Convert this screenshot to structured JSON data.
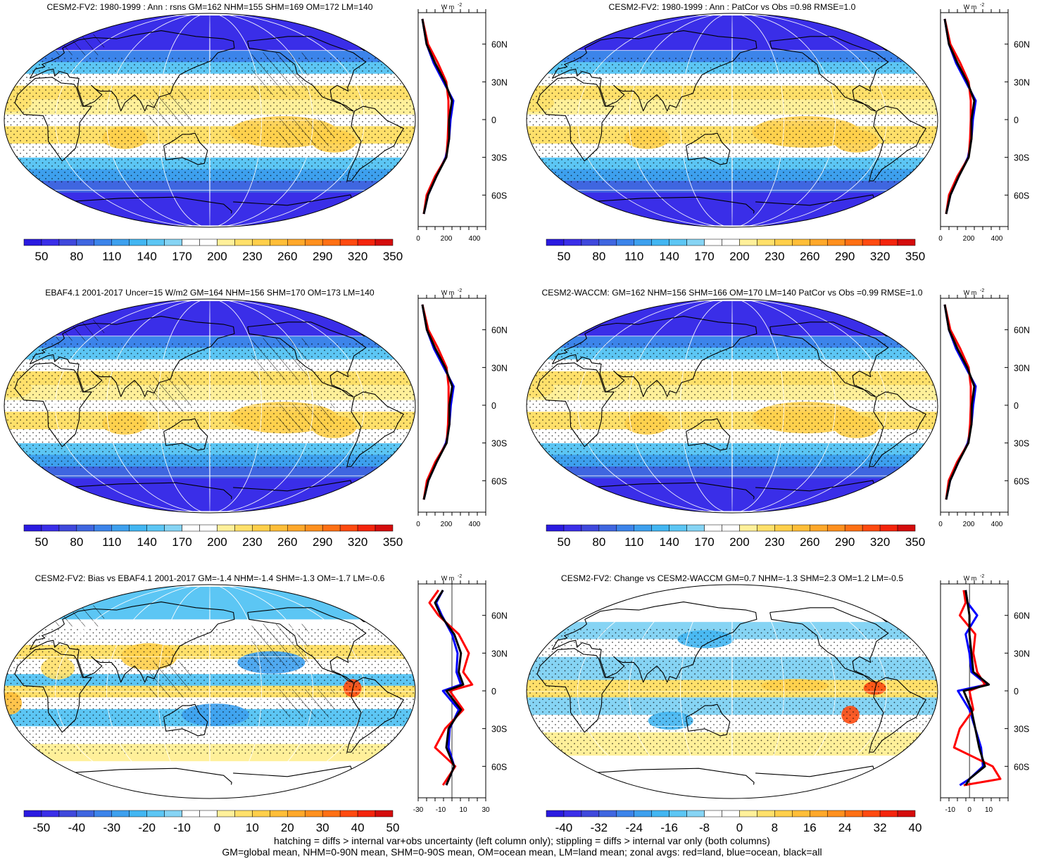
{
  "colors": {
    "abs_palette": [
      "#2a1ae0",
      "#3a2ee8",
      "#3f48dc",
      "#3f66e0",
      "#3c84ea",
      "#3da0ee",
      "#42b6f2",
      "#5cc6f4",
      "#86d4f4",
      "#ffffff",
      "#ffffff",
      "#fff09a",
      "#ffe06a",
      "#ffcf4a",
      "#ffbe38",
      "#ffa82a",
      "#ff901e",
      "#ff7014",
      "#ff4a10",
      "#f4240c",
      "#d40c0c"
    ],
    "diff_palette": [
      "#2a1ae0",
      "#3a2ee8",
      "#3f48dc",
      "#3f66e0",
      "#3c84ea",
      "#3da0ee",
      "#42b6f2",
      "#5cc6f4",
      "#86d4f4",
      "#ffffff",
      "#ffffff",
      "#fff09a",
      "#ffe06a",
      "#ffcf4a",
      "#ffbe38",
      "#ffa82a",
      "#ff901e",
      "#ff7014",
      "#ff4a10",
      "#f4240c",
      "#d40c0c"
    ],
    "land_line": "#ff0000",
    "ocean_line": "#0000ff",
    "all_line": "#000000"
  },
  "units_label": "W m",
  "units_exp": "-2",
  "lat_labels": [
    "60N",
    "30N",
    "0",
    "30S",
    "60S"
  ],
  "panels": [
    {
      "title": "CESM2-FV2: 1980-1999 : Ann : rsns GM=162 NHM=155 SHM=169 OM=172 LM=140",
      "kind": "abs",
      "hatching": true,
      "colorbar_labels": [
        "50",
        "80",
        "110",
        "140",
        "170",
        "200",
        "230",
        "260",
        "290",
        "320",
        "350"
      ],
      "zonal_ticks": [
        "0",
        "200",
        "400"
      ],
      "zonal_xlim": [
        0,
        480
      ]
    },
    {
      "title": "CESM2-FV2: 1980-1999 : Ann : PatCor vs Obs =0.98 RMSE=1.0",
      "kind": "abs",
      "hatching": false,
      "colorbar_labels": [
        "50",
        "80",
        "110",
        "140",
        "170",
        "200",
        "230",
        "260",
        "290",
        "320",
        "350"
      ],
      "zonal_ticks": [
        "0",
        "200",
        "400"
      ],
      "zonal_xlim": [
        0,
        480
      ]
    },
    {
      "title": "EBAF4.1 2001-2017 Uncer=15 W/m2 GM=164 NHM=156 SHM=170 OM=173 LM=140",
      "kind": "abs",
      "hatching": true,
      "colorbar_labels": [
        "50",
        "80",
        "110",
        "140",
        "170",
        "200",
        "230",
        "260",
        "290",
        "320",
        "350"
      ],
      "zonal_ticks": [
        "0",
        "200",
        "400"
      ],
      "zonal_xlim": [
        0,
        480
      ]
    },
    {
      "title": "CESM2-WACCM: GM=162 NHM=156 SHM=166 OM=170 LM=140 PatCor vs Obs =0.99 RMSE=1.0",
      "kind": "abs",
      "hatching": false,
      "colorbar_labels": [
        "50",
        "80",
        "110",
        "140",
        "170",
        "200",
        "230",
        "260",
        "290",
        "320",
        "350"
      ],
      "zonal_ticks": [
        "0",
        "200",
        "400"
      ],
      "zonal_xlim": [
        0,
        480
      ]
    },
    {
      "title": "CESM2-FV2: Bias vs EBAF4.1 2001-2017 GM=-1.4 NHM=-1.4 SHM=-1.3 OM=-1.7 LM=-0.6",
      "kind": "diff",
      "hatching": true,
      "colorbar_labels": [
        "-50",
        "-40",
        "-30",
        "-20",
        "-10",
        "0",
        "10",
        "20",
        "30",
        "40",
        "50"
      ],
      "zonal_ticks": [
        "-30",
        "-10",
        "10",
        "30"
      ],
      "zonal_xlim": [
        -30,
        30
      ]
    },
    {
      "title": "CESM2-FV2: Change vs CESM2-WACCM GM=0.7 NHM=-1.3 SHM=2.3 OM=1.2 LM=-0.5",
      "kind": "diff2",
      "hatching": false,
      "colorbar_labels": [
        "-40",
        "-32",
        "-24",
        "-16",
        "-8",
        "0",
        "8",
        "16",
        "24",
        "32",
        "40"
      ],
      "zonal_ticks": [
        "-10",
        "0",
        "10"
      ],
      "zonal_xlim": [
        -15,
        20
      ]
    }
  ],
  "chart_data": [
    {
      "type": "heatmap",
      "title": "CESM2-FV2: 1980-1999 : Ann : rsns GM=162 NHM=155 SHM=169 OM=172 LM=140",
      "colorbar": [
        50,
        80,
        110,
        140,
        170,
        200,
        230,
        260,
        290,
        320,
        350
      ],
      "zonal_mean": {
        "lat": [
          80,
          60,
          45,
          30,
          15,
          0,
          -15,
          -30,
          -45,
          -60,
          -75
        ],
        "all": [
          30,
          60,
          120,
          190,
          240,
          220,
          220,
          200,
          130,
          70,
          40
        ],
        "land": [
          30,
          70,
          140,
          200,
          215,
          215,
          210,
          200,
          120,
          60,
          40
        ],
        "ocean": [
          30,
          60,
          110,
          180,
          250,
          230,
          220,
          195,
          130,
          70,
          40
        ]
      }
    },
    {
      "type": "heatmap",
      "title": "CESM2-FV2: 1980-1999 : Ann : PatCor vs Obs =0.98 RMSE=1.0",
      "colorbar": [
        50,
        80,
        110,
        140,
        170,
        200,
        230,
        260,
        290,
        320,
        350
      ],
      "zonal_mean": {
        "lat": [
          80,
          60,
          45,
          30,
          15,
          0,
          -15,
          -30,
          -45,
          -60,
          -75
        ],
        "all": [
          30,
          60,
          120,
          190,
          240,
          220,
          220,
          200,
          130,
          70,
          40
        ],
        "land": [
          30,
          70,
          140,
          200,
          215,
          215,
          210,
          200,
          120,
          60,
          40
        ],
        "ocean": [
          30,
          60,
          110,
          180,
          250,
          230,
          220,
          195,
          130,
          70,
          40
        ]
      }
    },
    {
      "type": "heatmap",
      "title": "EBAF4.1 2001-2017 Uncer=15 W/m2 GM=164 NHM=156 SHM=170 OM=173 LM=140",
      "colorbar": [
        50,
        80,
        110,
        140,
        170,
        200,
        230,
        260,
        290,
        320,
        350
      ],
      "zonal_mean": {
        "lat": [
          80,
          60,
          45,
          30,
          15,
          0,
          -15,
          -30,
          -45,
          -60,
          -75
        ],
        "all": [
          30,
          62,
          122,
          192,
          242,
          222,
          222,
          202,
          132,
          72,
          40
        ],
        "land": [
          30,
          72,
          142,
          202,
          216,
          216,
          212,
          202,
          122,
          62,
          40
        ],
        "ocean": [
          30,
          62,
          112,
          182,
          252,
          232,
          222,
          197,
          132,
          72,
          40
        ]
      }
    },
    {
      "type": "heatmap",
      "title": "CESM2-WACCM: GM=162 NHM=156 SHM=166 OM=170 LM=140 PatCor vs Obs =0.99 RMSE=1.0",
      "colorbar": [
        50,
        80,
        110,
        140,
        170,
        200,
        230,
        260,
        290,
        320,
        350
      ],
      "zonal_mean": {
        "lat": [
          80,
          60,
          45,
          30,
          15,
          0,
          -15,
          -30,
          -45,
          -60,
          -75
        ],
        "all": [
          30,
          60,
          120,
          190,
          240,
          222,
          220,
          198,
          128,
          68,
          40
        ],
        "land": [
          30,
          70,
          140,
          200,
          215,
          215,
          210,
          198,
          118,
          58,
          40
        ],
        "ocean": [
          30,
          60,
          110,
          180,
          250,
          232,
          220,
          193,
          128,
          68,
          40
        ]
      }
    },
    {
      "type": "heatmap",
      "title": "CESM2-FV2: Bias vs EBAF4.1 2001-2017 GM=-1.4 NHM=-1.4 SHM=-1.3 OM=-1.7 LM=-0.6",
      "colorbar": [
        -50,
        -40,
        -30,
        -20,
        -10,
        0,
        10,
        20,
        30,
        40,
        50
      ],
      "zonal_mean": {
        "lat": [
          80,
          70,
          60,
          45,
          30,
          15,
          5,
          0,
          -15,
          -30,
          -45,
          -60,
          -75
        ],
        "all": [
          -8,
          -15,
          -10,
          2,
          8,
          6,
          10,
          -5,
          8,
          -3,
          -5,
          2,
          -5
        ],
        "land": [
          -12,
          -20,
          -12,
          6,
          15,
          10,
          18,
          -2,
          10,
          -6,
          -15,
          3,
          -8
        ],
        "ocean": [
          -8,
          -14,
          -9,
          0,
          5,
          4,
          8,
          -8,
          6,
          -2,
          -3,
          2,
          -5
        ]
      }
    },
    {
      "type": "heatmap",
      "title": "CESM2-FV2: Change vs CESM2-WACCM GM=0.7 NHM=-1.3 SHM=2.3 OM=1.2 LM=-0.5",
      "colorbar": [
        -40,
        -32,
        -24,
        -16,
        -8,
        0,
        8,
        16,
        24,
        32,
        40
      ],
      "zonal_mean": {
        "lat": [
          80,
          70,
          60,
          45,
          30,
          15,
          5,
          0,
          -15,
          -30,
          -45,
          -60,
          -70,
          -75
        ],
        "all": [
          -2,
          -1,
          0,
          0,
          1,
          2,
          10,
          -3,
          1,
          3,
          5,
          8,
          0,
          -2
        ],
        "land": [
          -3,
          -2,
          -5,
          3,
          2,
          4,
          8,
          0,
          2,
          -5,
          -8,
          12,
          16,
          -3
        ],
        "ocean": [
          -2,
          -1,
          4,
          -2,
          0,
          1,
          9,
          -6,
          0,
          3,
          6,
          7,
          0,
          -5
        ]
      }
    }
  ],
  "footer": {
    "line1": "hatching = diffs > internal var+obs uncertainty (left column only); stippling = diffs > internal var only (both columns)",
    "line2": "GM=global mean, NHM=0-90N mean, SHM=0-90S mean, OM=ocean mean, LM=land mean; zonal avgs: red=land, blue=ocean, black=all"
  }
}
